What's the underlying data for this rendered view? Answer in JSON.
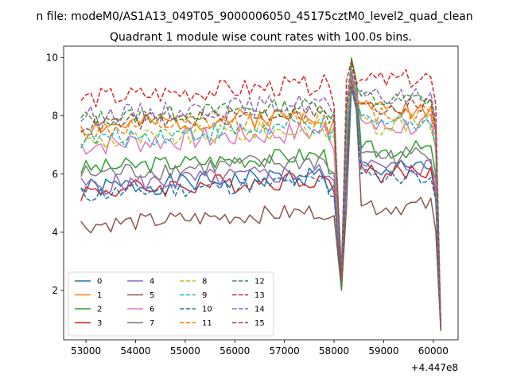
{
  "chart_data": {
    "type": "line",
    "suptitle": "n file: modeM0/AS1A13_049T05_9000006050_45175cztM0_level2_quad_clean",
    "title": "Quadrant 1 module wise count rates with 100.0s bins.",
    "xlabel": "",
    "ylabel": "",
    "x_offset_label": "+4.447e8",
    "xlim": [
      52550,
      60500
    ],
    "ylim": [
      0.3,
      10.4
    ],
    "xticks": [
      53000,
      54000,
      55000,
      56000,
      57000,
      58000,
      59000,
      60000
    ],
    "xtick_labels": [
      "53000",
      "54000",
      "55000",
      "56000",
      "57000",
      "58000",
      "59000",
      "60000"
    ],
    "yticks": [
      2,
      4,
      6,
      8,
      10
    ],
    "ytick_labels": [
      "2",
      "4",
      "6",
      "8",
      "10"
    ],
    "x_range": {
      "start": 52900,
      "step": 100,
      "gap_after": 58000,
      "resume": 58150,
      "end": 60150
    },
    "legend_location": "lower-left",
    "legend_columns": 4,
    "series": [
      {
        "name": "0",
        "color": "#1f77b4",
        "dash": "solid",
        "base": 5.5,
        "amp": 0.35,
        "seed": 1,
        "peak": 9.2
      },
      {
        "name": "1",
        "color": "#ff7f0e",
        "dash": "solid",
        "base": 7.6,
        "amp": 0.35,
        "seed": 2,
        "peak": 9.4
      },
      {
        "name": "2",
        "color": "#2ca02c",
        "dash": "solid",
        "base": 6.2,
        "amp": 0.3,
        "seed": 3,
        "peak": 10.0
      },
      {
        "name": "3",
        "color": "#d62728",
        "dash": "solid",
        "base": 5.4,
        "amp": 0.35,
        "seed": 4,
        "peak": 9.5
      },
      {
        "name": "4",
        "color": "#9467bd",
        "dash": "solid",
        "base": 5.6,
        "amp": 0.35,
        "seed": 5,
        "peak": 9.3
      },
      {
        "name": "5",
        "color": "#8c564b",
        "dash": "solid",
        "base": 4.25,
        "amp": 0.3,
        "seed": 6,
        "peak": 9.0
      },
      {
        "name": "6",
        "color": "#e377c2",
        "dash": "solid",
        "base": 7.0,
        "amp": 0.4,
        "seed": 7,
        "peak": 9.6
      },
      {
        "name": "7",
        "color": "#7f7f7f",
        "dash": "solid",
        "base": 6.0,
        "amp": 0.35,
        "seed": 8,
        "peak": 9.1
      },
      {
        "name": "8",
        "color": "#bcbd22",
        "dash": "dashed",
        "base": 7.1,
        "amp": 0.35,
        "seed": 9,
        "peak": 9.3
      },
      {
        "name": "9",
        "color": "#17becf",
        "dash": "dashed",
        "base": 7.2,
        "amp": 0.35,
        "seed": 10,
        "peak": 9.4
      },
      {
        "name": "10",
        "color": "#1f77b4",
        "dash": "dashed",
        "base": 5.3,
        "amp": 0.3,
        "seed": 11,
        "peak": 9.0
      },
      {
        "name": "11",
        "color": "#ff7f0e",
        "dash": "dashed",
        "base": 7.5,
        "amp": 0.35,
        "seed": 12,
        "peak": 9.3
      },
      {
        "name": "12",
        "color": "#2ca02c",
        "dash": "dashed",
        "base": 7.9,
        "amp": 0.3,
        "seed": 13,
        "peak": 9.8
      },
      {
        "name": "13",
        "color": "#d62728",
        "dash": "dashed",
        "base": 8.6,
        "amp": 0.35,
        "seed": 14,
        "peak": 9.9
      },
      {
        "name": "14",
        "color": "#9467bd",
        "dash": "dashed",
        "base": 8.0,
        "amp": 0.35,
        "seed": 15,
        "peak": 9.5
      },
      {
        "name": "15",
        "color": "#8c564b",
        "dash": "dashed",
        "base": 7.7,
        "amp": 0.3,
        "seed": 16,
        "peak": 9.2
      }
    ]
  }
}
